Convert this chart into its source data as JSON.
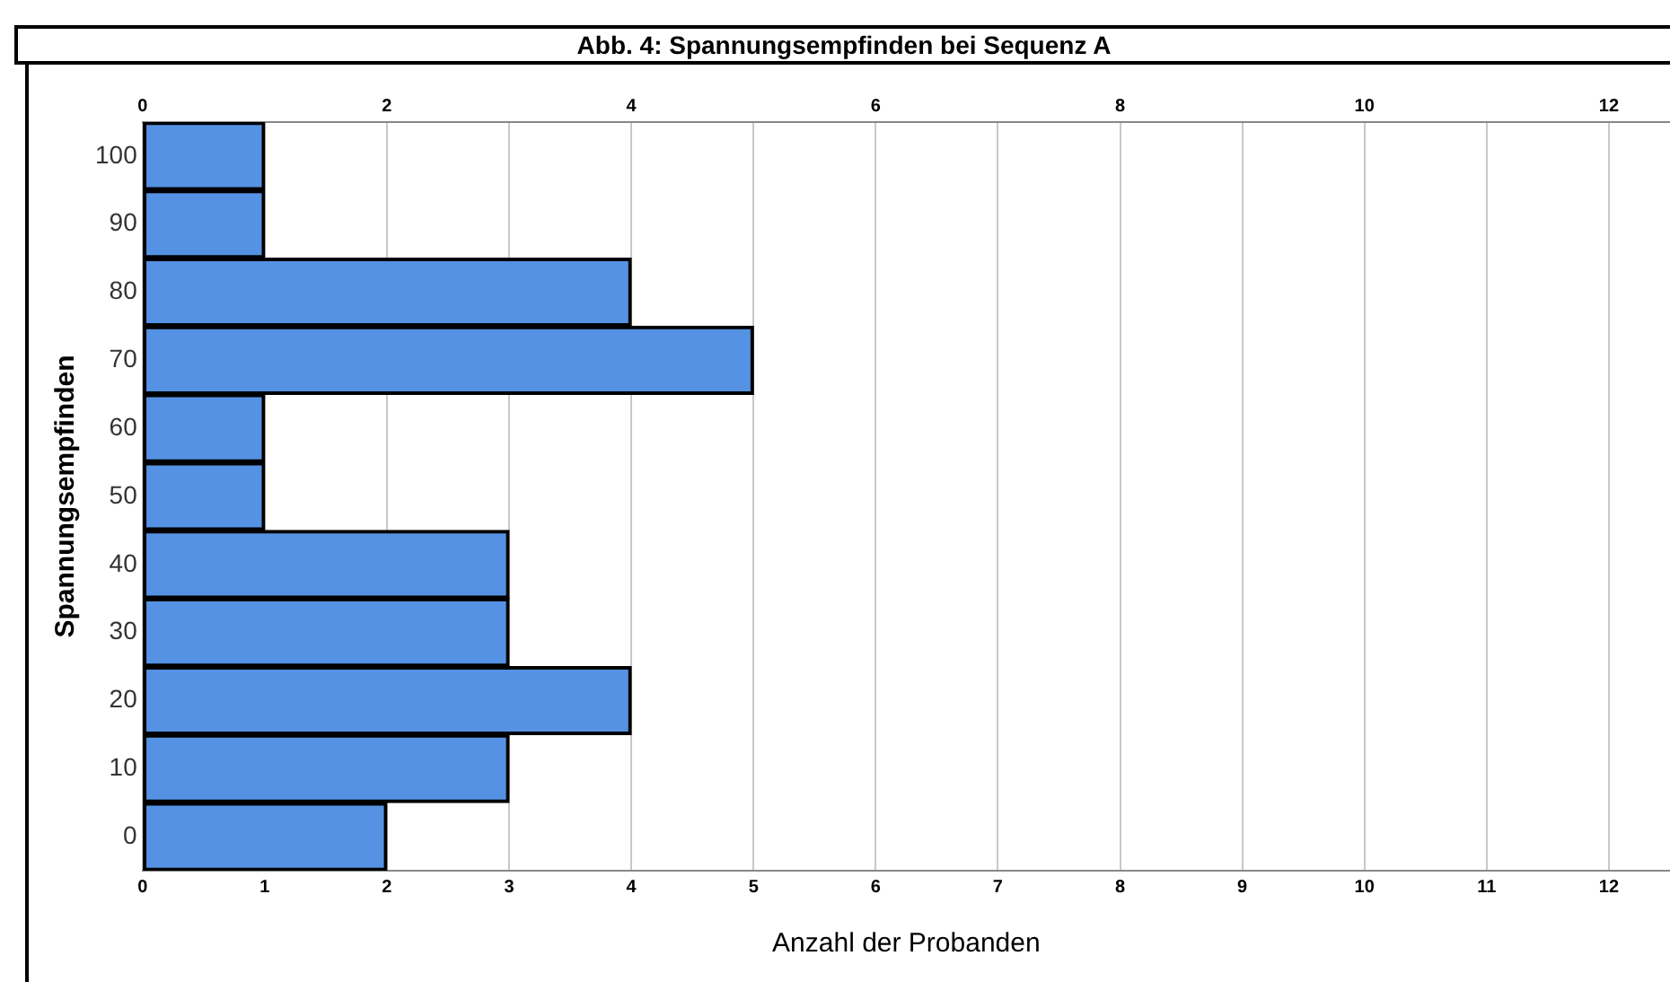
{
  "chart_data": {
    "type": "bar",
    "orientation": "horizontal",
    "title": "Abb. 4: Spannungsempfinden bei Sequenz A",
    "xlabel": "Anzahl der Probanden",
    "ylabel": "Spannungsempfinden",
    "categories": [
      "100",
      "90",
      "80",
      "70",
      "60",
      "50",
      "40",
      "30",
      "20",
      "10",
      "0"
    ],
    "values": [
      1,
      1,
      4,
      5,
      1,
      1,
      3,
      3,
      4,
      3,
      2
    ],
    "color": "#5592e3",
    "xlim": [
      0,
      12.5
    ],
    "xticks": [
      0,
      1,
      2,
      3,
      4,
      5,
      6,
      7,
      8,
      9,
      10,
      11,
      12
    ],
    "x2lim": [
      0,
      12.5
    ],
    "x2ticks": [
      0,
      2,
      4,
      6,
      8,
      10,
      12
    ],
    "grid": "x"
  }
}
